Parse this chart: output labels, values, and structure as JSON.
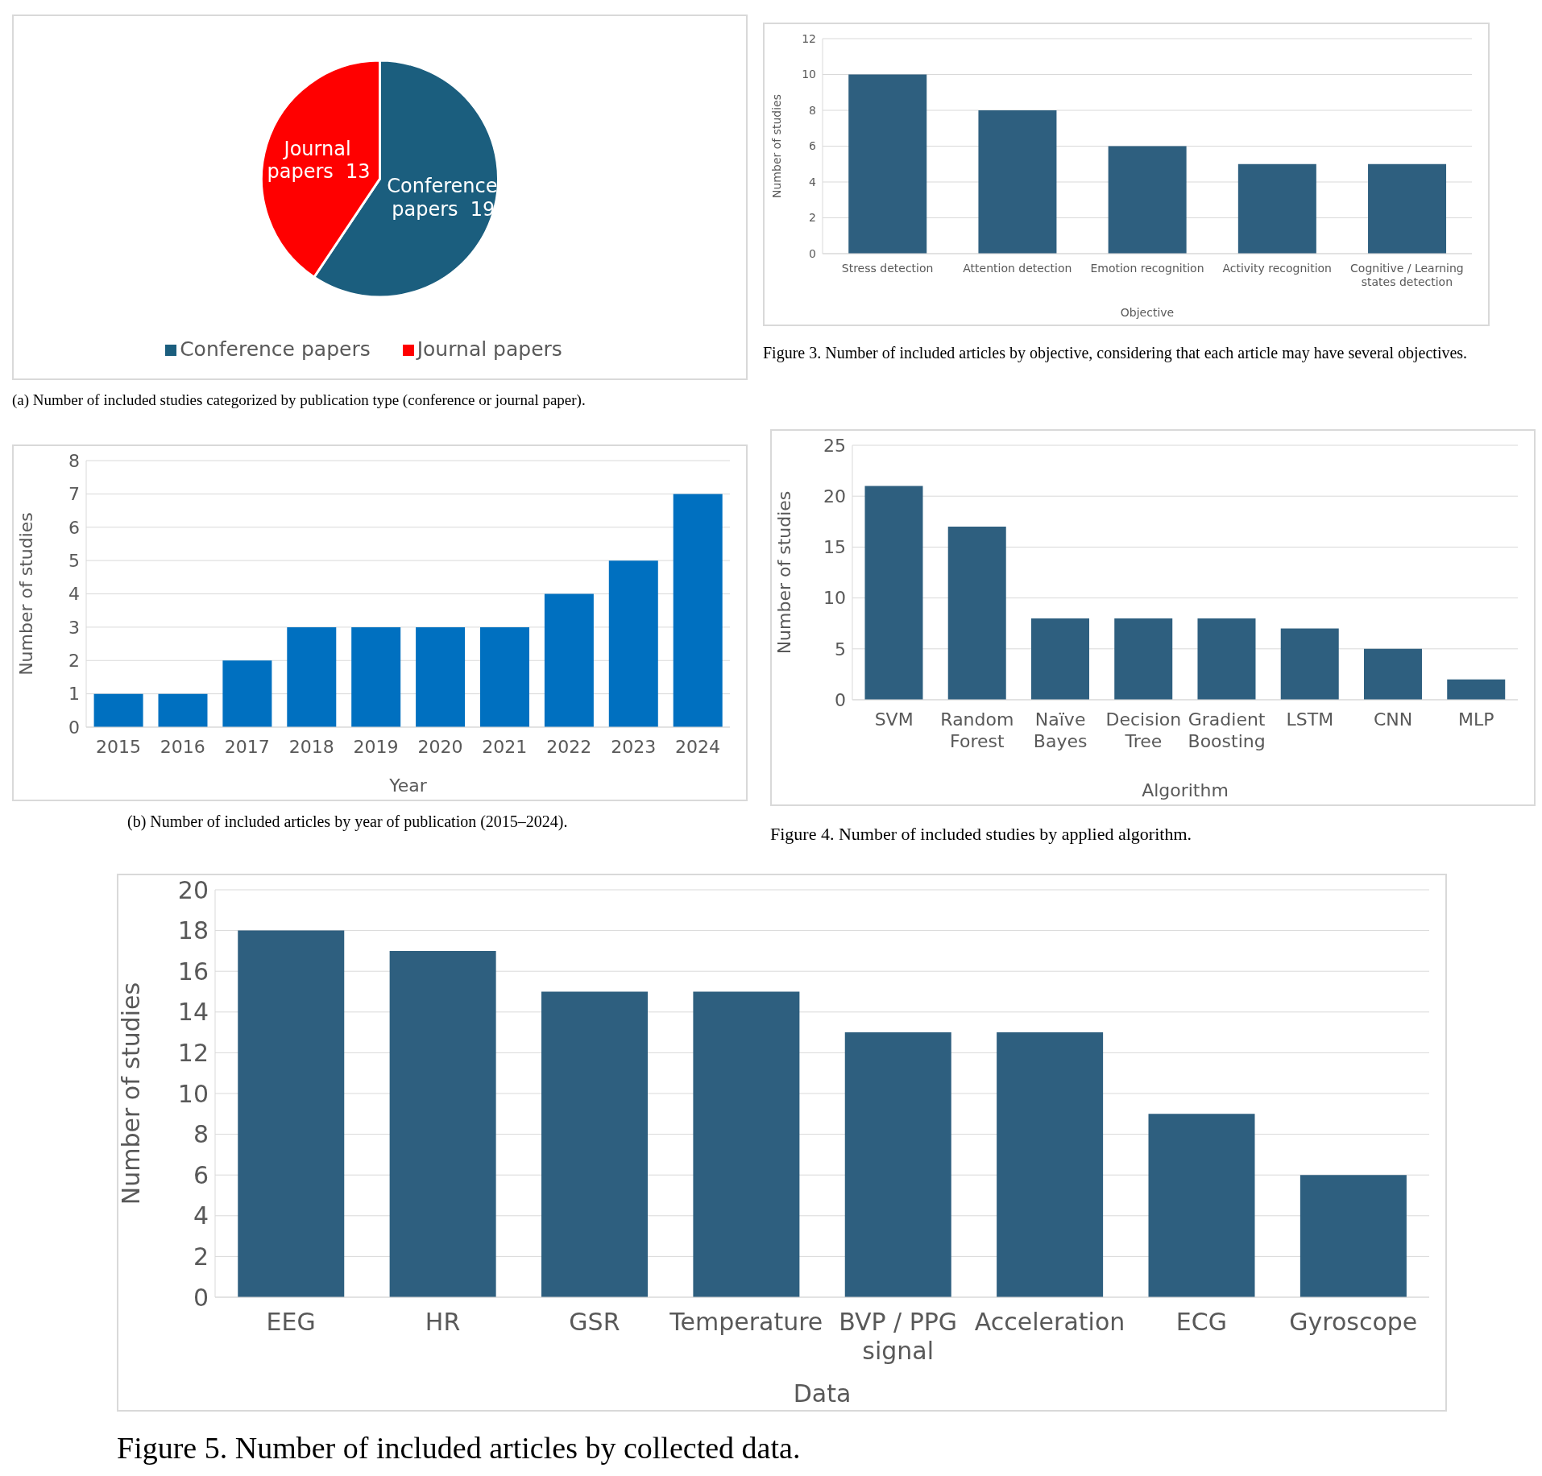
{
  "chart_data": [
    {
      "type": "pie",
      "categories": [
        "Conference papers",
        "Journal papers"
      ],
      "values": [
        19,
        13
      ],
      "colors": [
        "#1b5e7e",
        "#ff0000"
      ],
      "data_labels": true,
      "legend": "bottom",
      "annotations": [
        "(a) Number of included studies categorized by publication type (conference or journal paper)."
      ]
    },
    {
      "type": "bar",
      "categories": [
        "Stress detection",
        "Attention detection",
        "Emotion recognition",
        "Activity recognition",
        "Cognitive / Learning states detection"
      ],
      "values": [
        10,
        8,
        6,
        5,
        5
      ],
      "color": "#2e5f7f",
      "xlabel": "Objective",
      "ylabel": "Number of studies",
      "ylim": [
        0,
        12
      ],
      "yticks": [
        0,
        2,
        4,
        6,
        8,
        10,
        12
      ],
      "grid": "y",
      "annotations": [
        "Figure 3. Number of included articles by objective, considering that each article may have several objectives."
      ]
    },
    {
      "type": "bar",
      "categories": [
        "2015",
        "2016",
        "2017",
        "2018",
        "2019",
        "2020",
        "2021",
        "2022",
        "2023",
        "2024"
      ],
      "values": [
        1,
        1,
        2,
        3,
        3,
        3,
        3,
        4,
        5,
        7
      ],
      "color": "#0070c0",
      "xlabel": "Year",
      "ylabel": "Number of studies",
      "ylim": [
        0,
        8
      ],
      "yticks": [
        0,
        1,
        2,
        3,
        4,
        5,
        6,
        7,
        8
      ],
      "grid": "y",
      "annotations": [
        "(b) Number of included articles by year of publication (2015–2024)."
      ]
    },
    {
      "type": "bar",
      "categories": [
        "SVM",
        "Random Forest",
        "Naïve Bayes",
        "Decision Tree",
        "Gradient Boosting",
        "LSTM",
        "CNN",
        "MLP"
      ],
      "values": [
        21,
        17,
        8,
        8,
        8,
        7,
        5,
        2
      ],
      "color": "#2e5f7f",
      "xlabel": "Algorithm",
      "ylabel": "Number of studies",
      "ylim": [
        0,
        25
      ],
      "yticks": [
        0,
        5,
        10,
        15,
        20,
        25
      ],
      "grid": "y",
      "annotations": [
        "Figure 4. Number of included studies by applied algorithm."
      ]
    },
    {
      "type": "bar",
      "categories": [
        "EEG",
        "HR",
        "GSR",
        "Temperature",
        "BVP / PPG signal",
        "Acceleration",
        "ECG",
        "Gyroscope"
      ],
      "values": [
        18,
        17,
        15,
        15,
        13,
        13,
        9,
        6
      ],
      "color": "#2e5f7f",
      "xlabel": "Data",
      "ylabel": "Number of studies",
      "ylim": [
        0,
        20
      ],
      "yticks": [
        0,
        2,
        4,
        6,
        8,
        10,
        12,
        14,
        16,
        18,
        20
      ],
      "grid": "y",
      "annotations": [
        "Figure 5. Number of included articles by collected data."
      ]
    }
  ]
}
